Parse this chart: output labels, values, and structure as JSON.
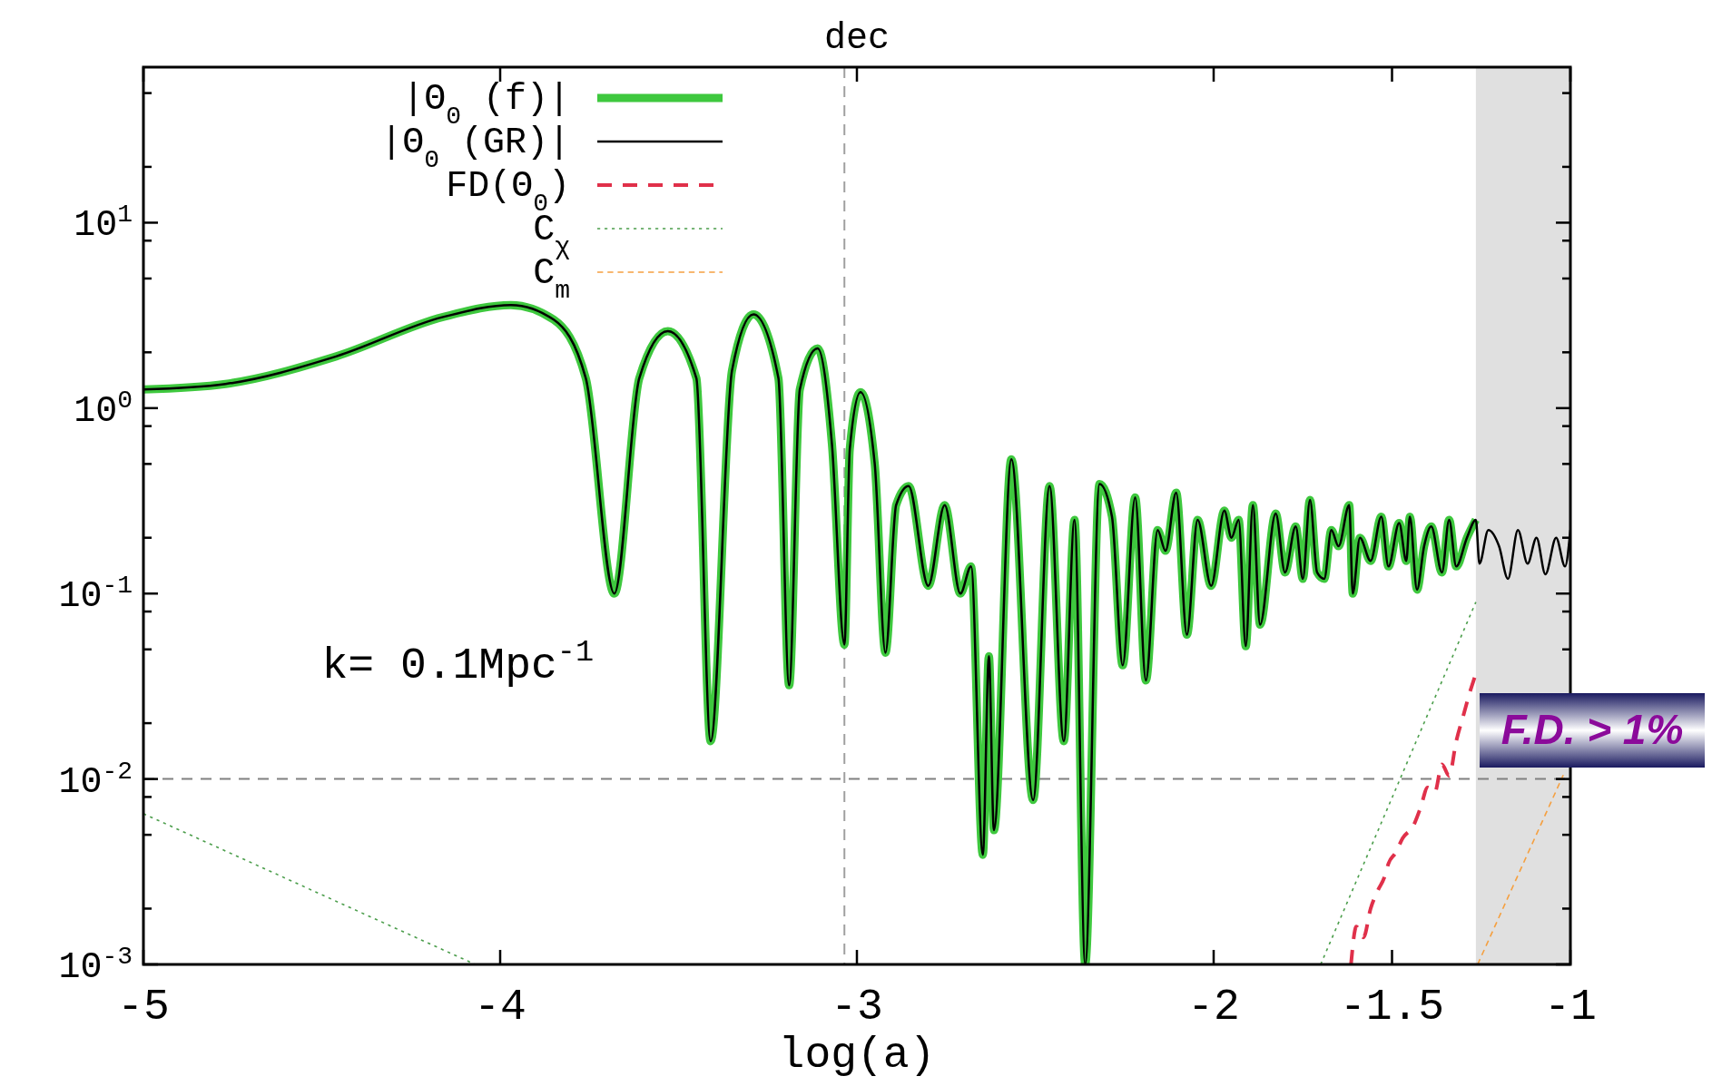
{
  "chart_data": {
    "type": "line",
    "title": "dec",
    "xlabel": "log(a)",
    "log": "y",
    "legend": "top left",
    "xlim": [
      -5,
      -1
    ],
    "xticks": [
      -5,
      -4,
      -3,
      -2,
      -1.5,
      -1
    ],
    "ylim": [
      0.001,
      69
    ],
    "yticks": [
      {
        "value": 0.001,
        "label": "10$^{-3}$"
      },
      {
        "value": 0.002,
        "label": null
      },
      {
        "value": 0.005,
        "label": null
      },
      {
        "value": 0.008,
        "label": null
      },
      {
        "value": 0.01,
        "label": "10$^{-2}$"
      },
      {
        "value": 0.02,
        "label": null
      },
      {
        "value": 0.05,
        "label": null
      },
      {
        "value": 0.08,
        "label": null
      },
      {
        "value": 0.1,
        "label": "10$^{-1}$"
      },
      {
        "value": 0.2,
        "label": null
      },
      {
        "value": 0.5,
        "label": null
      },
      {
        "value": 0.8,
        "label": null
      },
      {
        "value": 1,
        "label": "10$^{0}$"
      },
      {
        "value": 2,
        "label": null
      },
      {
        "value": 5,
        "label": null
      },
      {
        "value": 8,
        "label": null
      },
      {
        "value": 10,
        "label": "10$^{1}$"
      },
      {
        "value": 20,
        "label": null
      },
      {
        "value": 50,
        "label": null
      }
    ],
    "annotations": [
      "k= 0.1Mpc$^{-1}$",
      "F.D. > 1%"
    ],
    "ref_lines": [
      {
        "axis": "y",
        "value": 0.01,
        "color": "#808080",
        "line_style": "dashed"
      },
      {
        "axis": "x",
        "value": -3.035,
        "color": "#a0a0a0",
        "line_style": "dashed"
      }
    ],
    "bands": [
      {
        "axis": "x",
        "from": -1.265,
        "to": -1,
        "color": "#e0e0e0"
      }
    ],
    "series": [
      {
        "name": "|Θ$_{0}$ (f)|",
        "color": "#3ec83e",
        "line_style": "solid",
        "x": [
          -5,
          -4.77,
          -4.46,
          -4.16,
          -3.97,
          -3.85,
          -3.76,
          -3.68,
          -3.61,
          -3.53,
          -3.45,
          -3.41,
          -3.35,
          -3.29,
          -3.22,
          -3.19,
          -3.16,
          -3.11,
          -3.07,
          -3.035,
          -3.02,
          -2.99,
          -2.95,
          -2.92,
          -2.89,
          -2.855,
          -2.8,
          -2.754,
          -2.71,
          -2.68,
          -2.647,
          -2.63,
          -2.616,
          -2.567,
          -2.506,
          -2.46,
          -2.42,
          -2.39,
          -2.36,
          -2.32,
          -2.285,
          -2.255,
          -2.22,
          -2.19,
          -2.157,
          -2.135,
          -2.105,
          -2.075,
          -2.045,
          -2.007,
          -1.97,
          -1.95,
          -1.93,
          -1.91,
          -1.89,
          -1.87,
          -1.826,
          -1.8,
          -1.77,
          -1.75,
          -1.73,
          -1.71,
          -1.69,
          -1.67,
          -1.65,
          -1.62,
          -1.61,
          -1.59,
          -1.56,
          -1.53,
          -1.51,
          -1.48,
          -1.46,
          -1.45,
          -1.43,
          -1.41,
          -1.39,
          -1.36,
          -1.34,
          -1.32,
          -1.29,
          -1.265
        ],
        "values": [
          1.26,
          1.35,
          1.9,
          3.1,
          3.6,
          3.0,
          1.45,
          0.1,
          1.45,
          2.6,
          1.45,
          0.016,
          1.6,
          3.2,
          1.45,
          0.032,
          1.26,
          2.1,
          0.64,
          0.053,
          0.6,
          1.22,
          0.5,
          0.048,
          0.3,
          0.38,
          0.11,
          0.3,
          0.1,
          0.14,
          0.0039,
          0.046,
          0.0053,
          0.53,
          0.0077,
          0.38,
          0.016,
          0.25,
          0.001,
          0.39,
          0.26,
          0.041,
          0.33,
          0.034,
          0.22,
          0.17,
          0.35,
          0.06,
          0.25,
          0.11,
          0.28,
          0.2,
          0.25,
          0.052,
          0.3,
          0.068,
          0.27,
          0.13,
          0.23,
          0.12,
          0.32,
          0.13,
          0.12,
          0.22,
          0.18,
          0.3,
          0.1,
          0.2,
          0.15,
          0.26,
          0.14,
          0.24,
          0.15,
          0.26,
          0.105,
          0.18,
          0.23,
          0.13,
          0.25,
          0.14,
          0.2,
          0.25
        ]
      },
      {
        "name": "|Θ$_{0}$ (GR)|",
        "color": "#000000",
        "line_style": "solid",
        "x": [
          -5,
          -4.77,
          -4.46,
          -4.16,
          -3.97,
          -3.85,
          -3.76,
          -3.68,
          -3.61,
          -3.53,
          -3.45,
          -3.41,
          -3.35,
          -3.29,
          -3.22,
          -3.19,
          -3.16,
          -3.11,
          -3.07,
          -3.035,
          -3.02,
          -2.99,
          -2.95,
          -2.92,
          -2.89,
          -2.855,
          -2.8,
          -2.754,
          -2.71,
          -2.68,
          -2.647,
          -2.63,
          -2.616,
          -2.567,
          -2.506,
          -2.46,
          -2.42,
          -2.39,
          -2.36,
          -2.32,
          -2.285,
          -2.255,
          -2.22,
          -2.19,
          -2.157,
          -2.135,
          -2.105,
          -2.075,
          -2.045,
          -2.007,
          -1.97,
          -1.95,
          -1.93,
          -1.91,
          -1.89,
          -1.87,
          -1.826,
          -1.8,
          -1.77,
          -1.75,
          -1.73,
          -1.71,
          -1.69,
          -1.67,
          -1.65,
          -1.62,
          -1.61,
          -1.59,
          -1.56,
          -1.53,
          -1.51,
          -1.48,
          -1.46,
          -1.45,
          -1.43,
          -1.41,
          -1.39,
          -1.36,
          -1.34,
          -1.32,
          -1.29,
          -1.265,
          -1.255,
          -1.23,
          -1.2,
          -1.175,
          -1.147,
          -1.12,
          -1.095,
          -1.07,
          -1.04,
          -1.015,
          -1
        ],
        "values": [
          1.26,
          1.35,
          1.9,
          3.1,
          3.6,
          3.0,
          1.45,
          0.1,
          1.45,
          2.6,
          1.45,
          0.016,
          1.6,
          3.2,
          1.45,
          0.032,
          1.26,
          2.1,
          0.64,
          0.053,
          0.6,
          1.22,
          0.5,
          0.048,
          0.3,
          0.38,
          0.11,
          0.3,
          0.1,
          0.14,
          0.0039,
          0.046,
          0.0053,
          0.53,
          0.0077,
          0.38,
          0.016,
          0.25,
          0.001,
          0.39,
          0.26,
          0.041,
          0.33,
          0.034,
          0.22,
          0.17,
          0.35,
          0.06,
          0.25,
          0.11,
          0.28,
          0.2,
          0.25,
          0.052,
          0.3,
          0.068,
          0.27,
          0.13,
          0.23,
          0.12,
          0.32,
          0.13,
          0.12,
          0.22,
          0.18,
          0.3,
          0.1,
          0.2,
          0.15,
          0.26,
          0.14,
          0.24,
          0.15,
          0.26,
          0.105,
          0.18,
          0.23,
          0.13,
          0.25,
          0.14,
          0.2,
          0.25,
          0.145,
          0.22,
          0.18,
          0.12,
          0.22,
          0.145,
          0.2,
          0.127,
          0.2,
          0.14,
          0.22
        ]
      },
      {
        "name": "FD(Θ$_{0}$)",
        "color": "#e0304a",
        "line_style": "dashed",
        "x": [
          -1.615,
          -1.6,
          -1.58,
          -1.56,
          -1.54,
          -1.52,
          -1.51,
          -1.49,
          -1.47,
          -1.44,
          -1.42,
          -1.4,
          -1.38,
          -1.36,
          -1.34,
          -1.32,
          -1.3,
          -1.285,
          -1.265
        ],
        "values": [
          0.001,
          0.0016,
          0.0014,
          0.002,
          0.0025,
          0.003,
          0.0035,
          0.004,
          0.0048,
          0.0056,
          0.007,
          0.009,
          0.0085,
          0.012,
          0.0104,
          0.016,
          0.022,
          0.028,
          0.037
        ]
      },
      {
        "name": "C$_{χ}$",
        "color": "#4c9e4c",
        "line_style": "dotted",
        "x": [
          -5,
          -4.07,
          -2.8,
          -1.7,
          -1.265
        ],
        "values": [
          0.0065,
          0.001,
          null,
          0.001,
          0.09
        ]
      },
      {
        "name": "C$_{m}$",
        "color": "#f5a040",
        "line_style": "dashed",
        "x": [
          -1.26,
          -1.02
        ],
        "values": [
          0.001,
          0.0105
        ]
      }
    ]
  }
}
